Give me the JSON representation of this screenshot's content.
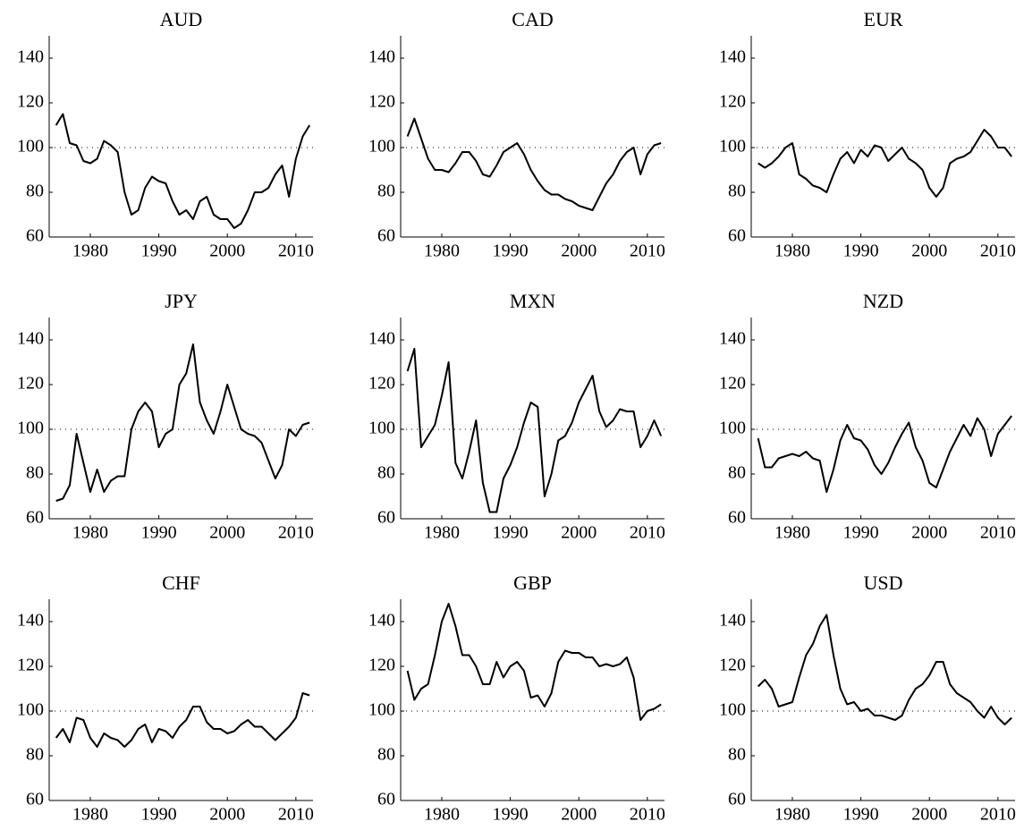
{
  "chart_data": [
    {
      "type": "line",
      "title": "AUD",
      "color": "#000000",
      "xlim": [
        1974,
        2012.5
      ],
      "ylim": [
        60,
        150
      ],
      "xticks": [
        1980,
        1990,
        2000,
        2010
      ],
      "yticks": [
        60,
        80,
        100,
        120,
        140
      ],
      "refline": 100,
      "x": [
        1975,
        1976,
        1977,
        1978,
        1979,
        1980,
        1981,
        1982,
        1983,
        1984,
        1985,
        1986,
        1987,
        1988,
        1989,
        1990,
        1991,
        1992,
        1993,
        1994,
        1995,
        1996,
        1997,
        1998,
        1999,
        2000,
        2001,
        2002,
        2003,
        2004,
        2005,
        2006,
        2007,
        2008,
        2009,
        2010,
        2011,
        2012
      ],
      "values": [
        110,
        115,
        102,
        101,
        94,
        93,
        95,
        103,
        101,
        98,
        80,
        70,
        72,
        82,
        87,
        85,
        84,
        76,
        70,
        72,
        68,
        76,
        78,
        70,
        68,
        68,
        64,
        66,
        72,
        80,
        80,
        82,
        88,
        92,
        78,
        95,
        105,
        110
      ]
    },
    {
      "type": "line",
      "title": "CAD",
      "color": "#000000",
      "xlim": [
        1974,
        2012.5
      ],
      "ylim": [
        60,
        150
      ],
      "xticks": [
        1980,
        1990,
        2000,
        2010
      ],
      "yticks": [
        60,
        80,
        100,
        120,
        140
      ],
      "refline": 100,
      "x": [
        1975,
        1976,
        1977,
        1978,
        1979,
        1980,
        1981,
        1982,
        1983,
        1984,
        1985,
        1986,
        1987,
        1988,
        1989,
        1990,
        1991,
        1992,
        1993,
        1994,
        1995,
        1996,
        1997,
        1998,
        1999,
        2000,
        2001,
        2002,
        2003,
        2004,
        2005,
        2006,
        2007,
        2008,
        2009,
        2010,
        2011,
        2012
      ],
      "values": [
        105,
        113,
        104,
        95,
        90,
        90,
        89,
        93,
        98,
        98,
        94,
        88,
        87,
        92,
        98,
        100,
        102,
        97,
        90,
        85,
        81,
        79,
        79,
        77,
        76,
        74,
        73,
        72,
        78,
        84,
        88,
        94,
        98,
        100,
        88,
        97,
        101,
        102
      ]
    },
    {
      "type": "line",
      "title": "EUR",
      "color": "#000000",
      "xlim": [
        1974,
        2012.5
      ],
      "ylim": [
        60,
        150
      ],
      "xticks": [
        1980,
        1990,
        2000,
        2010
      ],
      "yticks": [
        60,
        80,
        100,
        120,
        140
      ],
      "refline": 100,
      "x": [
        1975,
        1976,
        1977,
        1978,
        1979,
        1980,
        1981,
        1982,
        1983,
        1984,
        1985,
        1986,
        1987,
        1988,
        1989,
        1990,
        1991,
        1992,
        1993,
        1994,
        1995,
        1996,
        1997,
        1998,
        1999,
        2000,
        2001,
        2002,
        2003,
        2004,
        2005,
        2006,
        2007,
        2008,
        2009,
        2010,
        2011,
        2012
      ],
      "values": [
        93,
        91,
        93,
        96,
        100,
        102,
        88,
        86,
        83,
        82,
        80,
        88,
        95,
        98,
        93,
        99,
        96,
        101,
        100,
        94,
        97,
        100,
        95,
        93,
        90,
        82,
        78,
        82,
        93,
        95,
        96,
        98,
        103,
        108,
        105,
        100,
        100,
        96
      ]
    },
    {
      "type": "line",
      "title": "JPY",
      "color": "#000000",
      "xlim": [
        1974,
        2012.5
      ],
      "ylim": [
        60,
        150
      ],
      "xticks": [
        1980,
        1990,
        2000,
        2010
      ],
      "yticks": [
        60,
        80,
        100,
        120,
        140
      ],
      "refline": 100,
      "x": [
        1975,
        1976,
        1977,
        1978,
        1979,
        1980,
        1981,
        1982,
        1983,
        1984,
        1985,
        1986,
        1987,
        1988,
        1989,
        1990,
        1991,
        1992,
        1993,
        1994,
        1995,
        1996,
        1997,
        1998,
        1999,
        2000,
        2001,
        2002,
        2003,
        2004,
        2005,
        2006,
        2007,
        2008,
        2009,
        2010,
        2011,
        2012
      ],
      "values": [
        68,
        69,
        75,
        98,
        85,
        72,
        82,
        72,
        77,
        79,
        79,
        100,
        108,
        112,
        108,
        92,
        98,
        100,
        120,
        125,
        138,
        112,
        104,
        98,
        108,
        120,
        110,
        100,
        98,
        97,
        94,
        86,
        78,
        84,
        100,
        97,
        102,
        103
      ]
    },
    {
      "type": "line",
      "title": "MXN",
      "color": "#000000",
      "xlim": [
        1974,
        2012.5
      ],
      "ylim": [
        60,
        150
      ],
      "xticks": [
        1980,
        1990,
        2000,
        2010
      ],
      "yticks": [
        60,
        80,
        100,
        120,
        140
      ],
      "refline": 100,
      "x": [
        1975,
        1976,
        1977,
        1978,
        1979,
        1980,
        1981,
        1982,
        1983,
        1984,
        1985,
        1986,
        1987,
        1988,
        1989,
        1990,
        1991,
        1992,
        1993,
        1994,
        1995,
        1996,
        1997,
        1998,
        1999,
        2000,
        2001,
        2002,
        2003,
        2004,
        2005,
        2006,
        2007,
        2008,
        2009,
        2010,
        2011,
        2012
      ],
      "values": [
        126,
        136,
        92,
        97,
        102,
        115,
        130,
        85,
        78,
        90,
        104,
        76,
        63,
        63,
        78,
        84,
        92,
        103,
        112,
        110,
        70,
        80,
        95,
        97,
        103,
        112,
        118,
        124,
        108,
        101,
        104,
        109,
        108,
        108,
        92,
        97,
        104,
        97
      ]
    },
    {
      "type": "line",
      "title": "NZD",
      "color": "#000000",
      "xlim": [
        1974,
        2012.5
      ],
      "ylim": [
        60,
        150
      ],
      "xticks": [
        1980,
        1990,
        2000,
        2010
      ],
      "yticks": [
        60,
        80,
        100,
        120,
        140
      ],
      "refline": 100,
      "x": [
        1975,
        1976,
        1977,
        1978,
        1979,
        1980,
        1981,
        1982,
        1983,
        1984,
        1985,
        1986,
        1987,
        1988,
        1989,
        1990,
        1991,
        1992,
        1993,
        1994,
        1995,
        1996,
        1997,
        1998,
        1999,
        2000,
        2001,
        2002,
        2003,
        2004,
        2005,
        2006,
        2007,
        2008,
        2009,
        2010,
        2011,
        2012
      ],
      "values": [
        96,
        83,
        83,
        87,
        88,
        89,
        88,
        90,
        87,
        86,
        72,
        82,
        95,
        102,
        96,
        95,
        91,
        84,
        80,
        85,
        92,
        98,
        103,
        92,
        86,
        76,
        74,
        82,
        90,
        96,
        102,
        97,
        105,
        100,
        88,
        98,
        102,
        106
      ]
    },
    {
      "type": "line",
      "title": "CHF",
      "color": "#000000",
      "xlim": [
        1974,
        2012.5
      ],
      "ylim": [
        60,
        150
      ],
      "xticks": [
        1980,
        1990,
        2000,
        2010
      ],
      "yticks": [
        60,
        80,
        100,
        120,
        140
      ],
      "refline": 100,
      "x": [
        1975,
        1976,
        1977,
        1978,
        1979,
        1980,
        1981,
        1982,
        1983,
        1984,
        1985,
        1986,
        1987,
        1988,
        1989,
        1990,
        1991,
        1992,
        1993,
        1994,
        1995,
        1996,
        1997,
        1998,
        1999,
        2000,
        2001,
        2002,
        2003,
        2004,
        2005,
        2006,
        2007,
        2008,
        2009,
        2010,
        2011,
        2012
      ],
      "values": [
        88,
        92,
        86,
        97,
        96,
        88,
        84,
        90,
        88,
        87,
        84,
        87,
        92,
        94,
        86,
        92,
        91,
        88,
        93,
        96,
        102,
        102,
        95,
        92,
        92,
        90,
        91,
        94,
        96,
        93,
        93,
        90,
        87,
        90,
        93,
        97,
        108,
        107
      ]
    },
    {
      "type": "line",
      "title": "GBP",
      "color": "#000000",
      "xlim": [
        1974,
        2012.5
      ],
      "ylim": [
        60,
        150
      ],
      "xticks": [
        1980,
        1990,
        2000,
        2010
      ],
      "yticks": [
        60,
        80,
        100,
        120,
        140
      ],
      "refline": 100,
      "x": [
        1975,
        1976,
        1977,
        1978,
        1979,
        1980,
        1981,
        1982,
        1983,
        1984,
        1985,
        1986,
        1987,
        1988,
        1989,
        1990,
        1991,
        1992,
        1993,
        1994,
        1995,
        1996,
        1997,
        1998,
        1999,
        2000,
        2001,
        2002,
        2003,
        2004,
        2005,
        2006,
        2007,
        2008,
        2009,
        2010,
        2011,
        2012
      ],
      "values": [
        118,
        105,
        110,
        112,
        125,
        140,
        148,
        138,
        125,
        125,
        120,
        112,
        112,
        122,
        115,
        120,
        122,
        118,
        106,
        107,
        102,
        108,
        122,
        127,
        126,
        126,
        124,
        124,
        120,
        121,
        120,
        121,
        124,
        115,
        96,
        100,
        101,
        103
      ]
    },
    {
      "type": "line",
      "title": "USD",
      "color": "#000000",
      "xlim": [
        1974,
        2012.5
      ],
      "ylim": [
        60,
        150
      ],
      "xticks": [
        1980,
        1990,
        2000,
        2010
      ],
      "yticks": [
        60,
        80,
        100,
        120,
        140
      ],
      "refline": 100,
      "x": [
        1975,
        1976,
        1977,
        1978,
        1979,
        1980,
        1981,
        1982,
        1983,
        1984,
        1985,
        1986,
        1987,
        1988,
        1989,
        1990,
        1991,
        1992,
        1993,
        1994,
        1995,
        1996,
        1997,
        1998,
        1999,
        2000,
        2001,
        2002,
        2003,
        2004,
        2005,
        2006,
        2007,
        2008,
        2009,
        2010,
        2011,
        2012
      ],
      "values": [
        111,
        114,
        110,
        102,
        103,
        104,
        115,
        125,
        130,
        138,
        143,
        125,
        110,
        103,
        104,
        100,
        101,
        98,
        98,
        97,
        96,
        98,
        105,
        110,
        112,
        116,
        122,
        122,
        112,
        108,
        106,
        104,
        100,
        97,
        102,
        97,
        94,
        97
      ]
    }
  ]
}
